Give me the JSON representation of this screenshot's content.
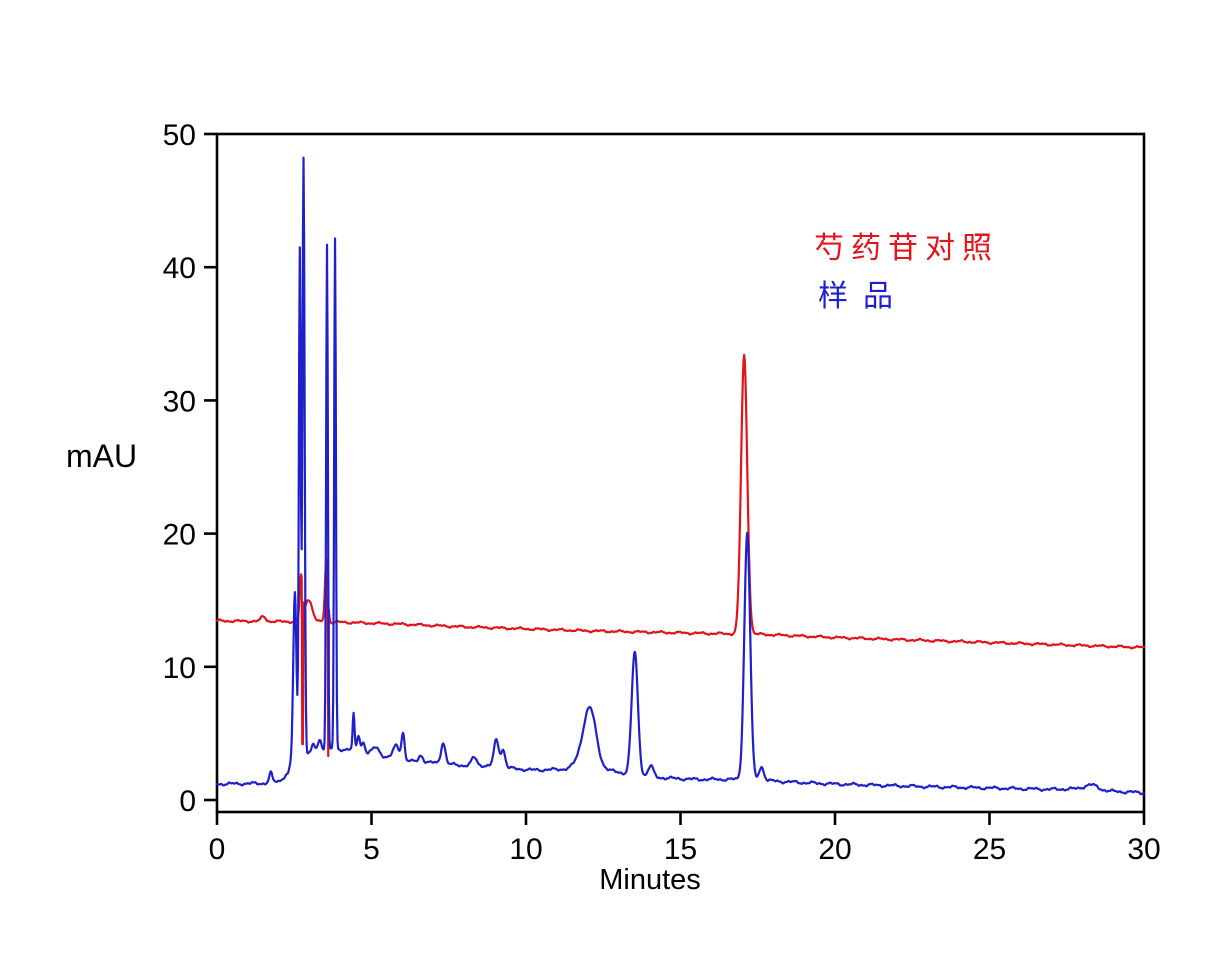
{
  "title": "",
  "axis": {
    "ylabel": "mAU",
    "xlabel": "Minutes"
  },
  "legend": {
    "position": "upper-right-inside",
    "items": [
      {
        "label": "芍药苷对照",
        "color": "#e3131b",
        "series": "reference"
      },
      {
        "label": "样品",
        "color": "#1f1fcc",
        "series": "sample"
      }
    ]
  },
  "chart_data": {
    "type": "line",
    "title": "",
    "xlabel": "Minutes",
    "ylabel": "mAU",
    "xlim": [
      0,
      30
    ],
    "ylim": [
      -0.9,
      50
    ],
    "x_ticks": [
      0,
      5,
      10,
      15,
      20,
      25,
      30
    ],
    "y_ticks": [
      0,
      10,
      20,
      30,
      40,
      50
    ],
    "grid": false,
    "frame": "box",
    "axis_color": "#000000",
    "series": [
      {
        "name": "芍药苷对照",
        "color": "#e3131b",
        "noise": 0.055,
        "seed": 7,
        "baseline": [
          [
            0,
            13.45
          ],
          [
            2,
            13.4
          ],
          [
            4,
            13.35
          ],
          [
            6,
            13.2
          ],
          [
            8,
            13.0
          ],
          [
            10,
            12.85
          ],
          [
            12,
            12.7
          ],
          [
            14,
            12.6
          ],
          [
            16,
            12.5
          ],
          [
            17.5,
            12.45
          ],
          [
            20,
            12.2
          ],
          [
            22,
            12.05
          ],
          [
            24,
            11.9
          ],
          [
            26,
            11.75
          ],
          [
            28,
            11.6
          ],
          [
            30,
            11.45
          ]
        ],
        "peaks": [
          {
            "t": 1.5,
            "h": 0.35,
            "s": 0.08
          },
          {
            "t": 2.72,
            "h": 3.3,
            "s": 0.045
          },
          {
            "t": 2.96,
            "h": 1.7,
            "s": 0.12
          },
          {
            "t": 3.54,
            "h": 4.7,
            "s": 0.045
          },
          {
            "t": 17.06,
            "h": 20.9,
            "s": 0.1
          }
        ],
        "drops": [
          {
            "t": 2.78,
            "v": 4.2
          },
          {
            "t": 3.6,
            "v": 3.3
          }
        ]
      },
      {
        "name": "样品",
        "color": "#1f1fcc",
        "noise": 0.07,
        "seed": 3,
        "baseline": [
          [
            0,
            1.2
          ],
          [
            1.5,
            1.25
          ],
          [
            2.0,
            1.4
          ],
          [
            2.3,
            2.0
          ],
          [
            2.45,
            3.3
          ],
          [
            3.1,
            3.6
          ],
          [
            3.5,
            3.8
          ],
          [
            4.3,
            3.8
          ],
          [
            5.0,
            3.4
          ],
          [
            5.5,
            3.2
          ],
          [
            6.3,
            2.9
          ],
          [
            7.0,
            2.8
          ],
          [
            7.9,
            2.6
          ],
          [
            8.6,
            2.6
          ],
          [
            9.4,
            2.4
          ],
          [
            10.2,
            2.25
          ],
          [
            11.2,
            2.3
          ],
          [
            12.6,
            2.25
          ],
          [
            13.2,
            2.0
          ],
          [
            13.9,
            1.8
          ],
          [
            14.5,
            1.65
          ],
          [
            15.5,
            1.55
          ],
          [
            17.0,
            1.55
          ],
          [
            17.5,
            1.5
          ],
          [
            18.2,
            1.4
          ],
          [
            19.0,
            1.3
          ],
          [
            20.0,
            1.2
          ],
          [
            21.5,
            1.1
          ],
          [
            23.0,
            1.0
          ],
          [
            25.0,
            0.9
          ],
          [
            27.0,
            0.8
          ],
          [
            28.0,
            0.85
          ],
          [
            29.0,
            0.65
          ],
          [
            30.0,
            0.55
          ]
        ],
        "peaks": [
          {
            "t": 1.74,
            "h": 0.7,
            "s": 0.05
          },
          {
            "t": 2.52,
            "h": 12.2,
            "s": 0.05
          },
          {
            "t": 2.68,
            "h": 38.0,
            "s": 0.03
          },
          {
            "t": 2.8,
            "h": 44.8,
            "s": 0.035
          },
          {
            "t": 3.12,
            "h": 0.5,
            "s": 0.05
          },
          {
            "t": 3.32,
            "h": 0.8,
            "s": 0.06
          },
          {
            "t": 3.56,
            "h": 37.9,
            "s": 0.028
          },
          {
            "t": 3.82,
            "h": 38.3,
            "s": 0.028
          },
          {
            "t": 4.42,
            "h": 2.7,
            "s": 0.03
          },
          {
            "t": 4.58,
            "h": 1.2,
            "s": 0.05
          },
          {
            "t": 4.74,
            "h": 0.8,
            "s": 0.05
          },
          {
            "t": 5.14,
            "h": 0.6,
            "s": 0.12
          },
          {
            "t": 5.8,
            "h": 1.0,
            "s": 0.1
          },
          {
            "t": 6.02,
            "h": 2.0,
            "s": 0.05
          },
          {
            "t": 6.6,
            "h": 0.5,
            "s": 0.07
          },
          {
            "t": 7.32,
            "h": 1.6,
            "s": 0.07
          },
          {
            "t": 8.32,
            "h": 0.6,
            "s": 0.08
          },
          {
            "t": 9.04,
            "h": 2.0,
            "s": 0.08
          },
          {
            "t": 9.26,
            "h": 1.3,
            "s": 0.07
          },
          {
            "t": 11.9,
            "h": 1.1,
            "s": 0.25
          },
          {
            "t": 12.08,
            "h": 3.8,
            "s": 0.2
          },
          {
            "t": 13.52,
            "h": 9.2,
            "s": 0.1
          },
          {
            "t": 14.04,
            "h": 0.8,
            "s": 0.08
          },
          {
            "t": 17.16,
            "h": 18.5,
            "s": 0.095
          },
          {
            "t": 17.62,
            "h": 1.0,
            "s": 0.08
          },
          {
            "t": 28.3,
            "h": 0.35,
            "s": 0.2
          }
        ],
        "drops": []
      }
    ]
  }
}
